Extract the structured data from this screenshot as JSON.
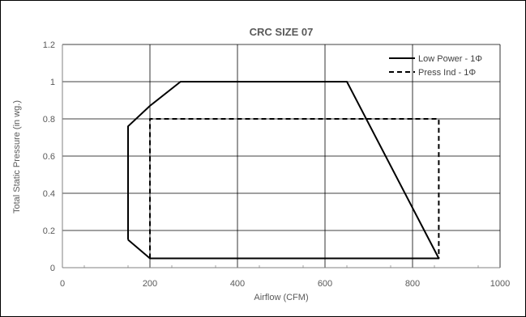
{
  "chart_data": {
    "type": "line",
    "title": "CRC SIZE 07",
    "xlabel": "Airflow (CFM)",
    "ylabel": "Total Static Pressure (in wg.)",
    "xlim": [
      0,
      1000
    ],
    "ylim": [
      0,
      1.2
    ],
    "xticks": [
      0,
      200,
      400,
      600,
      800,
      1000
    ],
    "yticks": [
      0,
      0.2,
      0.4,
      0.6,
      0.8,
      1.0,
      1.2
    ],
    "xtick_labels": [
      "0",
      "200",
      "400",
      "600",
      "800",
      "1000"
    ],
    "ytick_labels": [
      "0",
      "0.2",
      "0.4",
      "0.6",
      "0.8",
      "1",
      "1.2"
    ],
    "grid": true,
    "legend_position": "top-right",
    "series": [
      {
        "name": "Low Power - 1Φ",
        "style": "solid",
        "color": "#000000",
        "x": [
          150,
          150,
          200,
          270,
          650,
          860,
          860
        ],
        "y": [
          0.15,
          0.76,
          0.87,
          1.0,
          1.0,
          0.05,
          0.05
        ]
      },
      {
        "name": "Press Ind - 1Φ",
        "style": "dashed",
        "color": "#000000",
        "x": [
          200,
          200,
          860,
          860,
          200
        ],
        "y": [
          0.05,
          0.8,
          0.8,
          0.05,
          0.05
        ]
      }
    ],
    "extra_segments": [
      {
        "series": "Low Power - 1Φ",
        "x": [
          150,
          200,
          860
        ],
        "y": [
          0.15,
          0.05,
          0.05
        ]
      }
    ]
  }
}
